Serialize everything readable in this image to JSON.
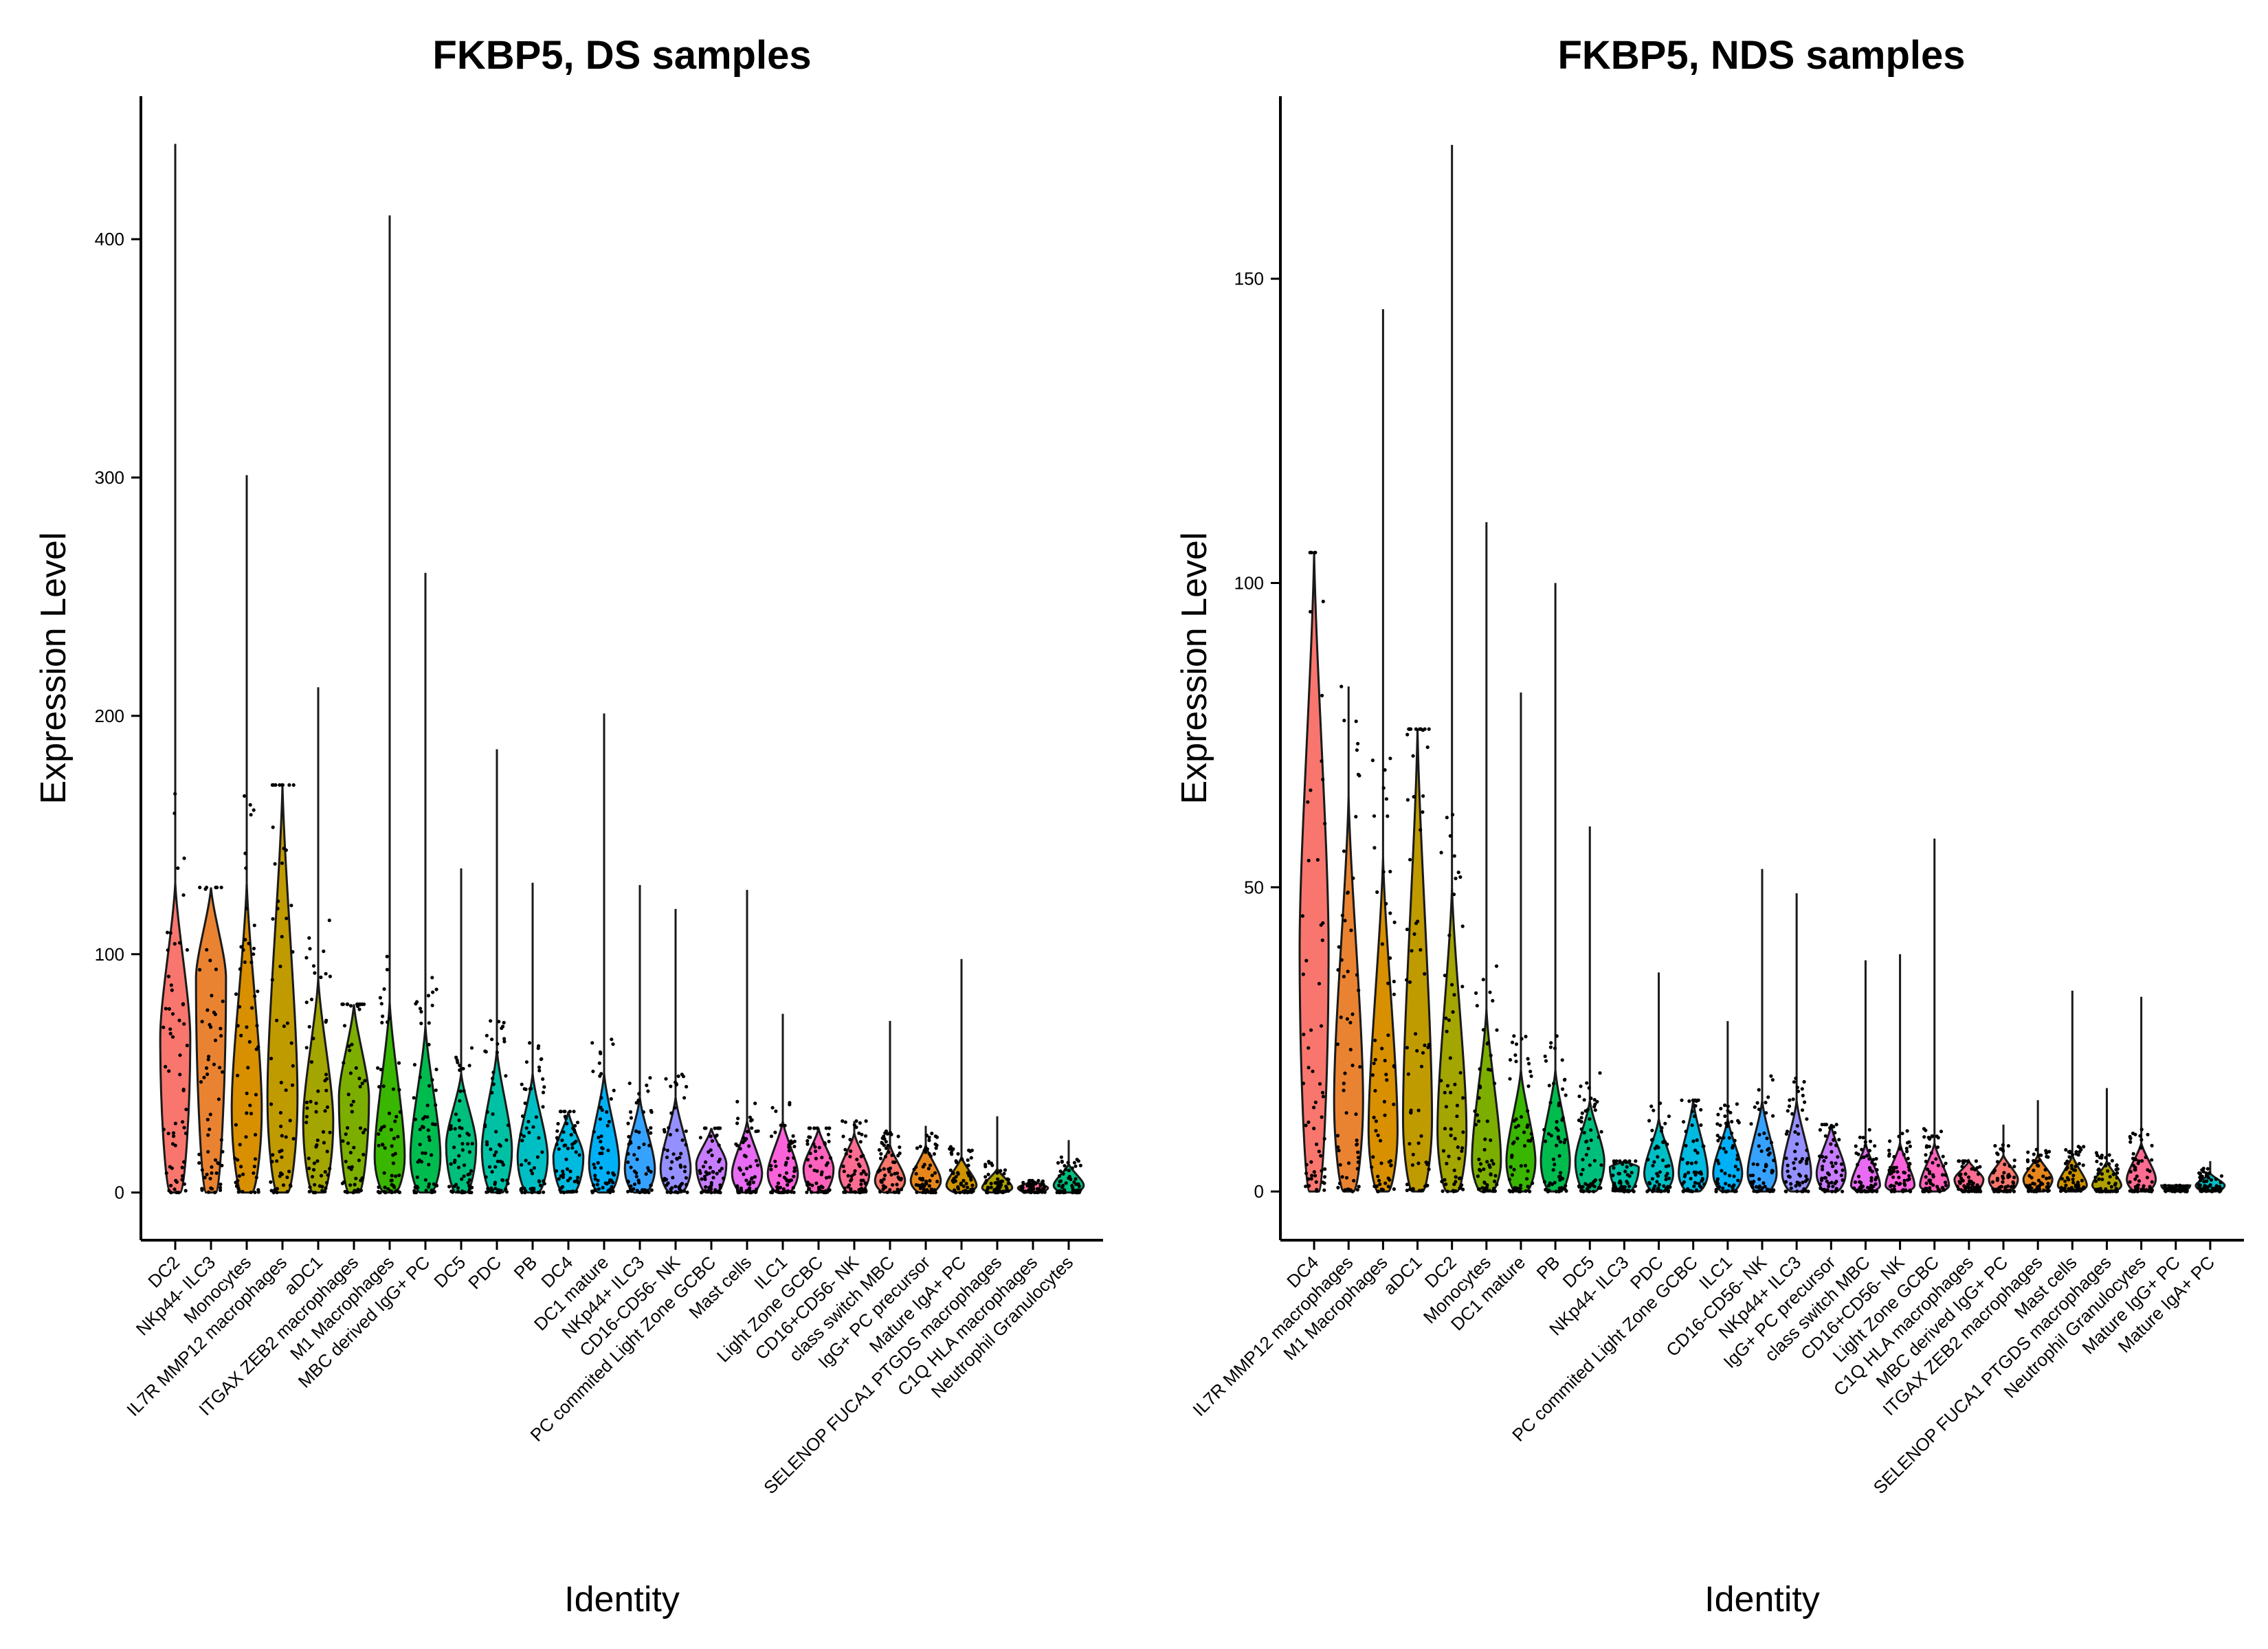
{
  "chart_data": [
    {
      "type": "violin",
      "title": "FKBP5, DS samples",
      "xlabel": "Identity",
      "ylabel": "Expression Level",
      "ylim": [
        -20,
        460
      ],
      "yticks": [
        0,
        100,
        200,
        300,
        400
      ],
      "series": [
        {
          "name": "DC2",
          "max": 440,
          "median": 65,
          "q_upper": 130,
          "color": "#F8766D"
        },
        {
          "name": "NKp44- ILC3",
          "max": 128,
          "median": 90,
          "q_upper": 128,
          "color": "#EA8331"
        },
        {
          "name": "Monocytes",
          "max": 301,
          "median": 35,
          "q_upper": 130,
          "color": "#D89000"
        },
        {
          "name": "IL7R MMP12 macrophages",
          "max": 171,
          "median": 40,
          "q_upper": 171,
          "color": "#C09B00"
        },
        {
          "name": "aDC1",
          "max": 212,
          "median": 30,
          "q_upper": 90,
          "color": "#A3A500"
        },
        {
          "name": "ITGAX ZEB2 macrophages",
          "max": 79,
          "median": 40,
          "q_upper": 79,
          "color": "#7CAE00"
        },
        {
          "name": "M1 Macrophages",
          "max": 410,
          "median": 15,
          "q_upper": 80,
          "color": "#39B600"
        },
        {
          "name": "MBC derived IgG+ PC",
          "max": 260,
          "median": 15,
          "q_upper": 70,
          "color": "#00BB4E"
        },
        {
          "name": "DC5",
          "max": 136,
          "median": 20,
          "q_upper": 50,
          "color": "#00BF7D"
        },
        {
          "name": "PDC",
          "max": 186,
          "median": 18,
          "q_upper": 60,
          "color": "#00C1A3"
        },
        {
          "name": "PB",
          "max": 130,
          "median": 15,
          "q_upper": 50,
          "color": "#00BFC4"
        },
        {
          "name": "DC4",
          "max": 34,
          "median": 15,
          "q_upper": 34,
          "color": "#00BAE0"
        },
        {
          "name": "DC1 mature",
          "max": 201,
          "median": 12,
          "q_upper": 50,
          "color": "#00B0F6"
        },
        {
          "name": "NKp44+ ILC3",
          "max": 129,
          "median": 10,
          "q_upper": 40,
          "color": "#35A2FF"
        },
        {
          "name": "CD16-CD56- NK",
          "max": 119,
          "median": 10,
          "q_upper": 40,
          "color": "#9590FF"
        },
        {
          "name": "PC commited Light Zone GCBC",
          "max": 27,
          "median": 12,
          "q_upper": 27,
          "color": "#C77CFF"
        },
        {
          "name": "Mast cells",
          "max": 127,
          "median": 8,
          "q_upper": 30,
          "color": "#E76BF3"
        },
        {
          "name": "ILC1",
          "max": 75,
          "median": 8,
          "q_upper": 30,
          "color": "#FA62DB"
        },
        {
          "name": "Light Zone GCBC",
          "max": 27,
          "median": 10,
          "q_upper": 27,
          "color": "#FF62BC"
        },
        {
          "name": "CD16+CD56- NK",
          "max": 30,
          "median": 8,
          "q_upper": 25,
          "color": "#FF6C91"
        },
        {
          "name": "class switch MBC",
          "max": 72,
          "median": 5,
          "q_upper": 20,
          "color": "#F8766D"
        },
        {
          "name": "IgG+ PC precursor",
          "max": 28,
          "median": 5,
          "q_upper": 20,
          "color": "#E7861B"
        },
        {
          "name": "Mature IgA+ PC",
          "max": 98,
          "median": 3,
          "q_upper": 15,
          "color": "#CF9400"
        },
        {
          "name": "SELENOP FUCA1 PTGDS macrophages",
          "max": 32,
          "median": 2,
          "q_upper": 10,
          "color": "#AFA100"
        },
        {
          "name": "C1Q HLA macrophages",
          "max": 5,
          "median": 2,
          "q_upper": 5,
          "color": "#FF6C91"
        },
        {
          "name": "Neutrophil Granulocytes",
          "max": 22,
          "median": 3,
          "q_upper": 12,
          "color": "#00BF7D"
        }
      ]
    },
    {
      "type": "violin",
      "title": "FKBP5, NDS samples",
      "xlabel": "Identity",
      "ylabel": "Expression Level",
      "ylim": [
        -8,
        180
      ],
      "yticks": [
        0,
        50,
        100,
        150
      ],
      "series": [
        {
          "name": "DC4",
          "max": 105,
          "median": 40,
          "q_upper": 105,
          "color": "#F8766D"
        },
        {
          "name": "IL7R MMP12 macrophages",
          "max": 83,
          "median": 15,
          "q_upper": 65,
          "color": "#EA8331"
        },
        {
          "name": "M1 Macrophages",
          "max": 145,
          "median": 10,
          "q_upper": 55,
          "color": "#D89000"
        },
        {
          "name": "aDC1",
          "max": 76,
          "median": 12,
          "q_upper": 76,
          "color": "#C09B00"
        },
        {
          "name": "DC2",
          "max": 172,
          "median": 10,
          "q_upper": 50,
          "color": "#A3A500"
        },
        {
          "name": "Monocytes",
          "max": 110,
          "median": 5,
          "q_upper": 30,
          "color": "#7CAE00"
        },
        {
          "name": "DC1 mature",
          "max": 82,
          "median": 5,
          "q_upper": 20,
          "color": "#39B600"
        },
        {
          "name": "PB",
          "max": 100,
          "median": 5,
          "q_upper": 20,
          "color": "#00BB4E"
        },
        {
          "name": "DC5",
          "max": 60,
          "median": 5,
          "q_upper": 15,
          "color": "#00BF7D"
        },
        {
          "name": "NKp44- ILC3",
          "max": 5,
          "median": 4,
          "q_upper": 5,
          "color": "#00C1A3"
        },
        {
          "name": "PDC",
          "max": 36,
          "median": 3,
          "q_upper": 12,
          "color": "#00BFC4"
        },
        {
          "name": "PC commited Light Zone GCBC",
          "max": 15,
          "median": 3,
          "q_upper": 15,
          "color": "#00BAE0"
        },
        {
          "name": "ILC1",
          "max": 28,
          "median": 3,
          "q_upper": 12,
          "color": "#00B0F6"
        },
        {
          "name": "CD16-CD56- NK",
          "max": 53,
          "median": 3,
          "q_upper": 15,
          "color": "#35A2FF"
        },
        {
          "name": "NKp44+ ILC3",
          "max": 49,
          "median": 3,
          "q_upper": 15,
          "color": "#9590FF"
        },
        {
          "name": "IgG+ PC precursor",
          "max": 11,
          "median": 3,
          "q_upper": 11,
          "color": "#C77CFF"
        },
        {
          "name": "class switch MBC",
          "max": 38,
          "median": 1,
          "q_upper": 8,
          "color": "#E76BF3"
        },
        {
          "name": "CD16+CD56- NK",
          "max": 39,
          "median": 1,
          "q_upper": 8,
          "color": "#FA62DB"
        },
        {
          "name": "Light Zone GCBC",
          "max": 58,
          "median": 1,
          "q_upper": 8,
          "color": "#FF62BC"
        },
        {
          "name": "C1Q HLA macrophages",
          "max": 5,
          "median": 2,
          "q_upper": 5,
          "color": "#FF6C91"
        },
        {
          "name": "MBC derived IgG+ PC",
          "max": 11,
          "median": 2,
          "q_upper": 6,
          "color": "#F8766D"
        },
        {
          "name": "ITGAX ZEB2 macrophages",
          "max": 15,
          "median": 2,
          "q_upper": 6,
          "color": "#E7861B"
        },
        {
          "name": "Mast cells",
          "max": 33,
          "median": 1,
          "q_upper": 6,
          "color": "#CF9400"
        },
        {
          "name": "SELENOP FUCA1 PTGDS macrophages",
          "max": 17,
          "median": 1,
          "q_upper": 5,
          "color": "#AFA100"
        },
        {
          "name": "Neutrophil Granulocytes",
          "max": 32,
          "median": 2,
          "q_upper": 8,
          "color": "#FF6C91"
        },
        {
          "name": "Mature IgG+ PC",
          "max": 1,
          "median": 1,
          "q_upper": 1,
          "color": "#00BF7D"
        },
        {
          "name": "Mature IgA+ PC",
          "max": 5,
          "median": 1,
          "q_upper": 3,
          "color": "#00BFC4"
        }
      ]
    }
  ]
}
